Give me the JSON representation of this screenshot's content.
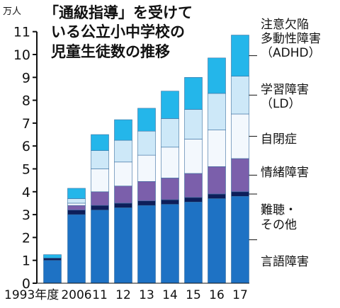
{
  "chart_data": {
    "type": "bar",
    "stacked": true,
    "title_lines": [
      "「通級指導」を受けて",
      "いる公立小中学校の",
      "児童生徒数の推移"
    ],
    "unit": "万人",
    "categories": [
      "1993年度",
      "2006",
      "11",
      "12",
      "13",
      "14",
      "15",
      "16",
      "17"
    ],
    "ylim": [
      0,
      11
    ],
    "yticks": [
      "0",
      "1",
      "2",
      "3",
      "4",
      "5",
      "6",
      "7",
      "8",
      "9",
      "10",
      "11"
    ],
    "series": [
      {
        "name": "言語障害",
        "color": "#1e72c4",
        "values": [
          1.0,
          3.0,
          3.2,
          3.3,
          3.4,
          3.45,
          3.55,
          3.7,
          3.8
        ]
      },
      {
        "name": "難聴・その他",
        "color": "#0d1e5a",
        "values": [
          0.1,
          0.2,
          0.2,
          0.2,
          0.2,
          0.2,
          0.2,
          0.2,
          0.2
        ]
      },
      {
        "name": "情緒障害",
        "color": "#7b5fab",
        "values": [
          0,
          0.2,
          0.6,
          0.75,
          0.85,
          0.95,
          1.05,
          1.2,
          1.45
        ]
      },
      {
        "name": "自閉症",
        "color": "#f3f8fd",
        "values": [
          0,
          0.1,
          1.0,
          1.05,
          1.15,
          1.35,
          1.5,
          1.6,
          1.95
        ]
      },
      {
        "name": "学習障害（LD）",
        "color": "#cde8f8",
        "values": [
          0,
          0.2,
          0.8,
          0.95,
          1.05,
          1.25,
          1.3,
          1.6,
          1.65
        ]
      },
      {
        "name": "注意欠陥多動性障害（ADHD）",
        "color": "#24b6ea",
        "values": [
          0.15,
          0.45,
          0.7,
          0.9,
          1.0,
          1.2,
          1.4,
          1.55,
          1.8
        ]
      }
    ],
    "legend_lines": [
      [
        "注意欠陥",
        "多動性障害",
        "（ADHD）"
      ],
      [
        "学習障害",
        "（LD）"
      ],
      [
        "自閉症"
      ],
      [
        "情緒障害"
      ],
      [
        "難聴・",
        "その他"
      ],
      [
        "言語障害"
      ]
    ],
    "grid": false,
    "legend_placement": "right"
  }
}
